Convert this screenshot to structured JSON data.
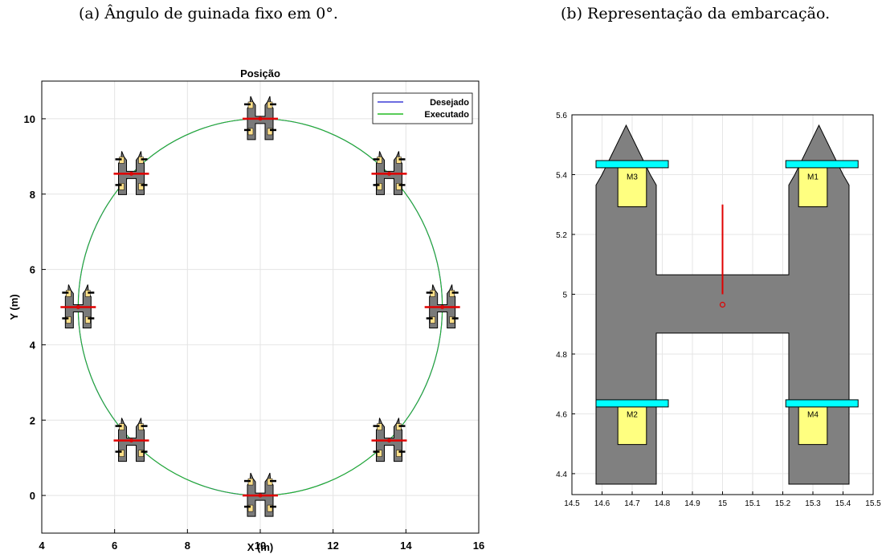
{
  "captions": {
    "a": "(a) Ângulo de guinada fixo em 0°.",
    "b": "(b) Representação da embarcação."
  },
  "chart_data": [
    {
      "type": "line",
      "title": "Posição",
      "xlabel": "X (m)",
      "ylabel": "Y (m)",
      "xlim": [
        4,
        16
      ],
      "ylim": [
        -1,
        11
      ],
      "xticks": [
        4,
        6,
        8,
        10,
        12,
        14,
        16
      ],
      "yticks": [
        0,
        2,
        4,
        6,
        8,
        10
      ],
      "grid": true,
      "legend": "top-right",
      "series": [
        {
          "name": "Desejado",
          "color": "#3b3bd6",
          "shape": "circle",
          "center": [
            10,
            5
          ],
          "radius": 5
        },
        {
          "name": "Executado",
          "color": "#22bb22",
          "shape": "circle",
          "center": [
            10,
            5
          ],
          "radius": 5
        }
      ],
      "vessel_poses": [
        {
          "x": 10,
          "y": 10,
          "heading_deg": 0
        },
        {
          "x": 13.54,
          "y": 8.54,
          "heading_deg": 0
        },
        {
          "x": 15,
          "y": 5,
          "heading_deg": 0
        },
        {
          "x": 13.54,
          "y": 1.46,
          "heading_deg": 0
        },
        {
          "x": 10,
          "y": 0,
          "heading_deg": 0
        },
        {
          "x": 6.46,
          "y": 1.46,
          "heading_deg": 0
        },
        {
          "x": 5,
          "y": 5,
          "heading_deg": 0
        },
        {
          "x": 6.46,
          "y": 8.54,
          "heading_deg": 0
        }
      ]
    },
    {
      "type": "scatter",
      "title": "",
      "xlim": [
        14.5,
        15.5
      ],
      "ylim": [
        4.33,
        5.6
      ],
      "xticks": [
        "14.5",
        "14.6",
        "14.7",
        "14.8",
        "14.9",
        "15",
        "15.1",
        "15.2",
        "15.3",
        "15.4",
        "15.5"
      ],
      "yticks": [
        "4.4",
        "4.6",
        "4.8",
        "5",
        "5.2",
        "5.4",
        "5.6"
      ],
      "grid": true,
      "hull_color": "#808080",
      "thruster_color": "#00ffff",
      "motor_color": "#ffff80",
      "center": [
        15,
        4.965
      ],
      "heading_line": [
        [
          15,
          5.0
        ],
        [
          15,
          5.3
        ]
      ],
      "motors": [
        {
          "label": "M1",
          "x": 15.3,
          "y": 5.365
        },
        {
          "label": "M2",
          "x": 14.7,
          "y": 4.57
        },
        {
          "label": "M3",
          "x": 14.7,
          "y": 5.365
        },
        {
          "label": "M4",
          "x": 15.3,
          "y": 4.57
        }
      ]
    }
  ]
}
